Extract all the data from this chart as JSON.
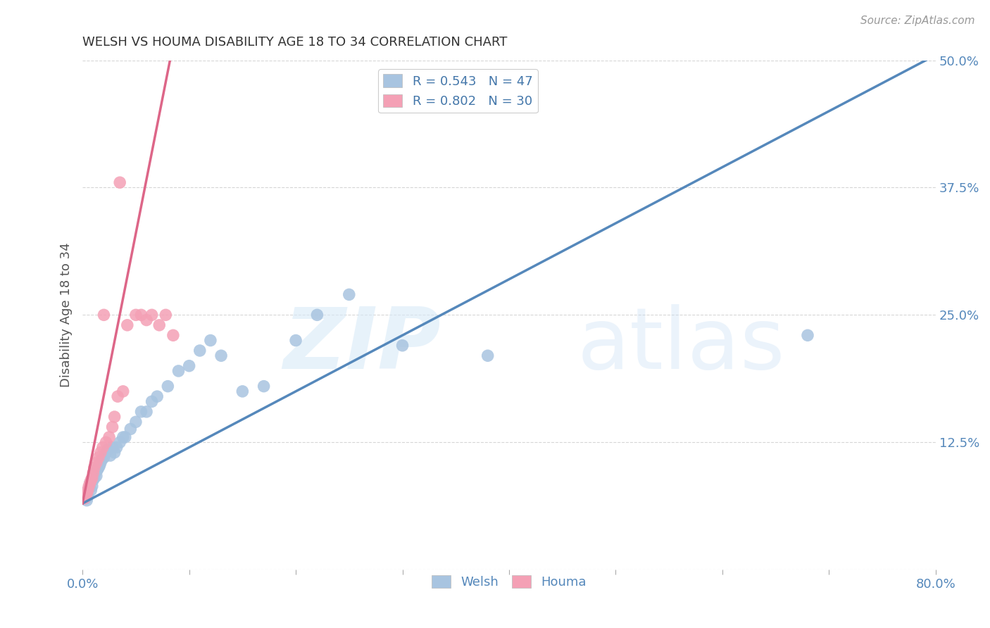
{
  "title": "WELSH VS HOUMA DISABILITY AGE 18 TO 34 CORRELATION CHART",
  "source": "Source: ZipAtlas.com",
  "ylabel": "Disability Age 18 to 34",
  "watermark_zip": "ZIP",
  "watermark_atlas": "atlas",
  "welsh_R": 0.543,
  "welsh_N": 47,
  "houma_R": 0.802,
  "houma_N": 30,
  "xlim": [
    0.0,
    0.8
  ],
  "ylim": [
    0.0,
    0.5
  ],
  "xticks": [
    0.0,
    0.1,
    0.2,
    0.3,
    0.4,
    0.5,
    0.6,
    0.7,
    0.8
  ],
  "yticks": [
    0.0,
    0.125,
    0.25,
    0.375,
    0.5
  ],
  "welsh_color": "#a8c4e0",
  "houma_color": "#f4a0b5",
  "welsh_line_color": "#5588bb",
  "houma_line_color": "#dd6688",
  "title_color": "#333333",
  "axis_label_color": "#555555",
  "tick_color": "#5588bb",
  "legend_color": "#4477aa",
  "background_color": "#ffffff",
  "grid_color": "#cccccc",
  "welsh_line_x0": 0.0,
  "welsh_line_y0": 0.065,
  "welsh_line_x1": 0.8,
  "welsh_line_y1": 0.505,
  "houma_line_x0": 0.0,
  "houma_line_y0": 0.065,
  "houma_line_x1": 0.083,
  "houma_line_y1": 0.505,
  "welsh_x": [
    0.002,
    0.003,
    0.004,
    0.005,
    0.006,
    0.007,
    0.008,
    0.009,
    0.01,
    0.011,
    0.012,
    0.013,
    0.014,
    0.015,
    0.016,
    0.017,
    0.018,
    0.02,
    0.022,
    0.024,
    0.026,
    0.028,
    0.03,
    0.032,
    0.035,
    0.038,
    0.04,
    0.045,
    0.05,
    0.055,
    0.06,
    0.065,
    0.07,
    0.08,
    0.09,
    0.1,
    0.11,
    0.12,
    0.13,
    0.15,
    0.17,
    0.2,
    0.22,
    0.25,
    0.3,
    0.38,
    0.68
  ],
  "welsh_y": [
    0.075,
    0.07,
    0.068,
    0.072,
    0.08,
    0.085,
    0.078,
    0.082,
    0.088,
    0.09,
    0.095,
    0.092,
    0.098,
    0.1,
    0.102,
    0.105,
    0.108,
    0.11,
    0.115,
    0.118,
    0.112,
    0.12,
    0.115,
    0.12,
    0.125,
    0.13,
    0.13,
    0.138,
    0.145,
    0.155,
    0.155,
    0.165,
    0.17,
    0.18,
    0.195,
    0.2,
    0.215,
    0.225,
    0.21,
    0.175,
    0.18,
    0.225,
    0.25,
    0.27,
    0.22,
    0.21,
    0.23
  ],
  "houma_x": [
    0.002,
    0.003,
    0.004,
    0.005,
    0.006,
    0.007,
    0.008,
    0.009,
    0.01,
    0.011,
    0.013,
    0.015,
    0.017,
    0.019,
    0.022,
    0.025,
    0.028,
    0.03,
    0.033,
    0.038,
    0.042,
    0.05,
    0.055,
    0.06,
    0.065,
    0.072,
    0.078,
    0.085,
    0.035,
    0.02
  ],
  "houma_y": [
    0.07,
    0.072,
    0.075,
    0.078,
    0.082,
    0.085,
    0.088,
    0.09,
    0.095,
    0.1,
    0.105,
    0.11,
    0.115,
    0.12,
    0.125,
    0.13,
    0.14,
    0.15,
    0.17,
    0.175,
    0.24,
    0.25,
    0.25,
    0.245,
    0.25,
    0.24,
    0.25,
    0.23,
    0.38,
    0.25
  ]
}
